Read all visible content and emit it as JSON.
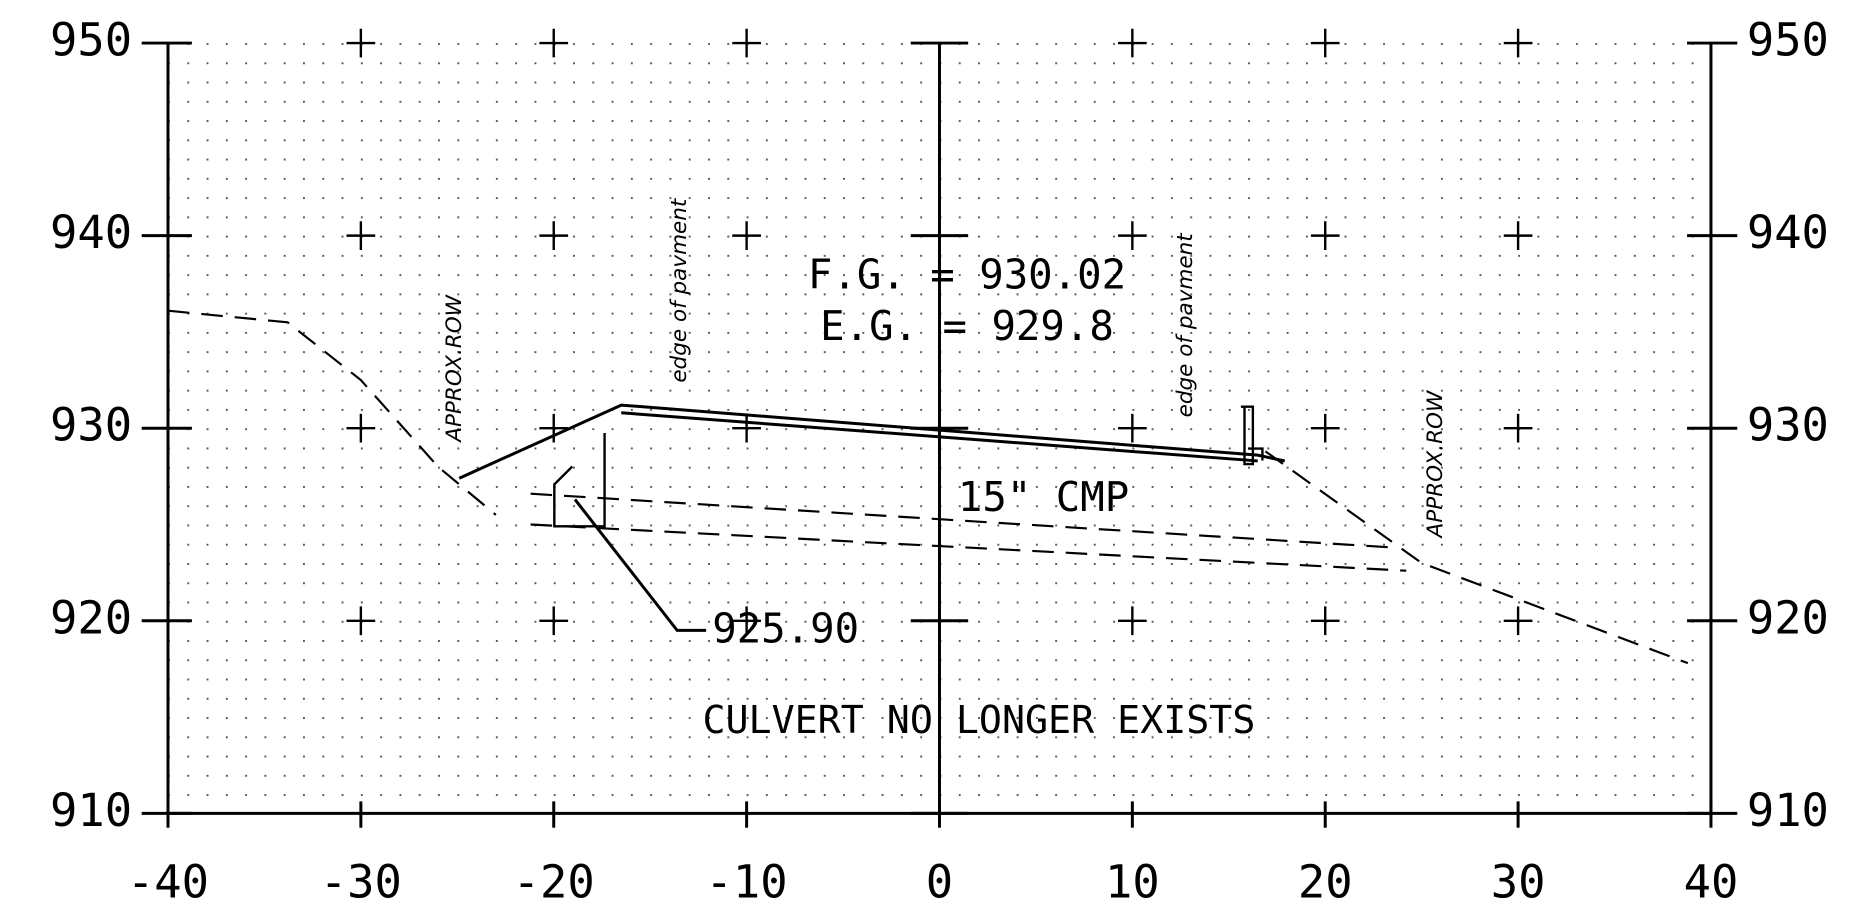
{
  "chart_data": {
    "type": "line",
    "xlim": [
      -40,
      40
    ],
    "ylim": [
      910,
      950
    ],
    "xticks": [
      -40,
      -30,
      -20,
      -10,
      0,
      10,
      20,
      30,
      40
    ],
    "yticks": [
      910,
      920,
      930,
      940,
      950
    ],
    "grid": true,
    "annotations": [
      "F.G. = 930.02",
      "E.G. = 929.8",
      "15\" CMP",
      "925.90",
      "CULVERT NO LONGER EXISTS",
      "APPROX.ROW",
      "APPROX.ROW",
      "edge of pavment",
      "edge of pavment"
    ],
    "series": [
      {
        "color": "#000000",
        "dashed": true,
        "x": [
          -40,
          -33.8,
          -30,
          -26,
          -23
        ],
        "values": [
          936.1,
          935.5,
          932.5,
          928,
          925.5
        ]
      },
      {
        "color": "#000000",
        "dashed": true,
        "x": [
          16.9,
          25,
          38.8
        ],
        "values": [
          928.8,
          923,
          917.8
        ]
      },
      {
        "color": "#000000",
        "dashed": false,
        "x": [
          -24.9,
          -16.5,
          16.5,
          17.9
        ],
        "values": [
          927.4,
          931.2,
          928.6,
          928.3
        ]
      },
      {
        "color": "#000000",
        "dashed": false,
        "x": [
          -16.5,
          16.5
        ],
        "values": [
          930.8,
          928.3
        ]
      },
      {
        "color": "#000000",
        "dashed": true,
        "x": [
          -21.2,
          23.6
        ],
        "values": [
          926.6,
          923.8
        ]
      },
      {
        "color": "#000000",
        "dashed": true,
        "x": [
          -21.2,
          24.2
        ],
        "values": [
          925.0,
          922.6
        ]
      },
      {
        "color": "#000000",
        "dashed": false,
        "x": [
          -18.9,
          -13.6,
          -12.1
        ],
        "values": [
          926.3,
          919.5,
          919.5
        ]
      }
    ]
  }
}
